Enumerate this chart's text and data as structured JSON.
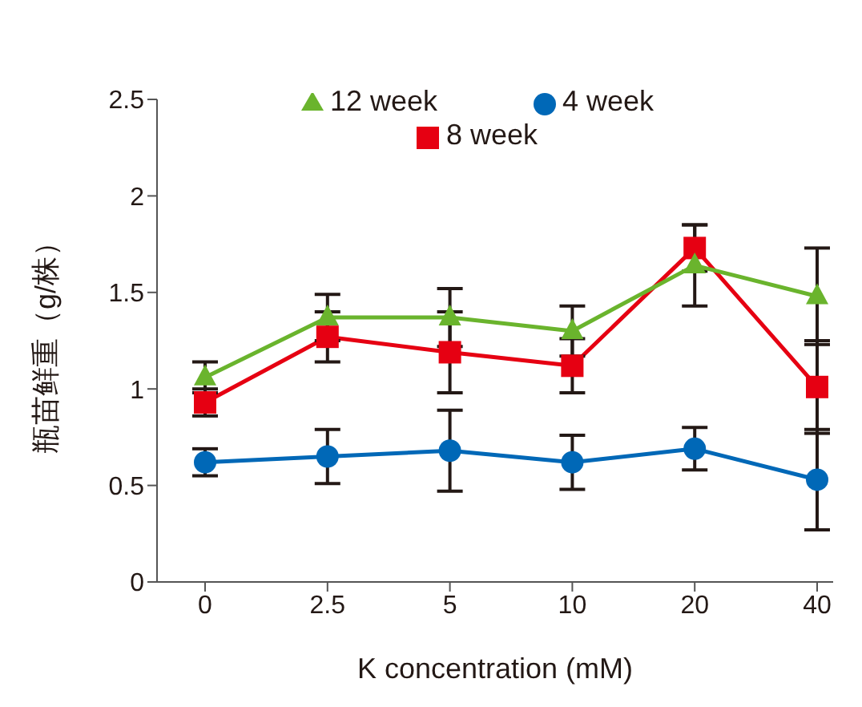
{
  "chart_data": {
    "type": "line",
    "xlabel": "K concentration (mM)",
    "ylabel": "瓶苗鲜重（g/株）",
    "categories": [
      "0",
      "2.5",
      "5",
      "10",
      "20",
      "40"
    ],
    "series": [
      {
        "name": "4 week",
        "color": "#0068b7",
        "marker": "circle",
        "values": [
          0.62,
          0.65,
          0.68,
          0.62,
          0.69,
          0.53
        ],
        "errors": [
          0.07,
          0.14,
          0.21,
          0.14,
          0.11,
          0.26
        ]
      },
      {
        "name": "8 week",
        "color": "#e60012",
        "marker": "square",
        "values": [
          0.93,
          1.27,
          1.19,
          1.12,
          1.73,
          1.01
        ],
        "errors": [
          0.07,
          0.13,
          0.21,
          0.14,
          0.12,
          0.24
        ]
      },
      {
        "name": "12 week",
        "color": "#6ab42d",
        "marker": "triangle",
        "values": [
          1.06,
          1.37,
          1.37,
          1.3,
          1.64,
          1.48
        ],
        "errors": [
          0.08,
          0.12,
          0.15,
          0.13,
          0.21,
          0.25
        ]
      }
    ],
    "ylim": [
      0,
      2.5
    ],
    "yticks": [
      0,
      0.5,
      1,
      1.5,
      2,
      2.5
    ],
    "grid": false,
    "legend": "top",
    "line_style": "solid"
  }
}
